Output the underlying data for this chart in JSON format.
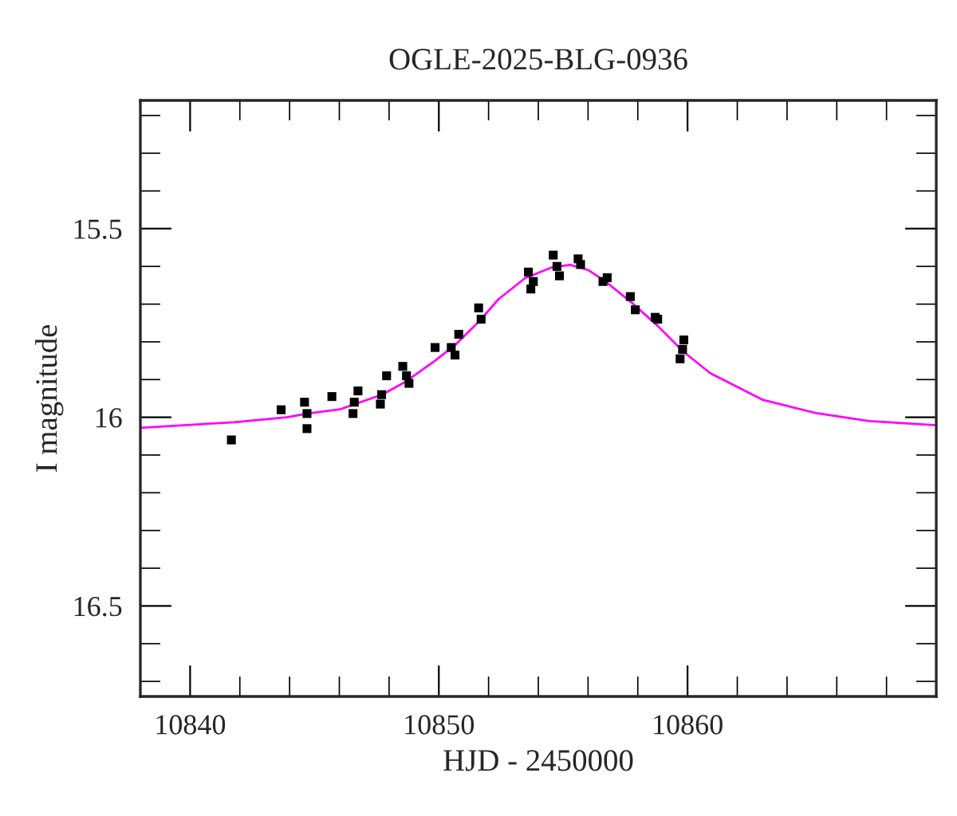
{
  "chart_data": {
    "type": "scatter",
    "title": "OGLE-2025-BLG-0936",
    "xlabel": "HJD - 2450000",
    "ylabel": "I magnitude",
    "xlim": [
      10838,
      10870
    ],
    "ylim": [
      16.74,
      15.16
    ],
    "xticks": [
      {
        "value": 10838,
        "label": null
      },
      10840,
      {
        "value": 10842,
        "label": null
      },
      {
        "value": 10844,
        "label": null
      },
      {
        "value": 10846,
        "label": null
      },
      {
        "value": 10848,
        "label": null
      },
      10850,
      {
        "value": 10852,
        "label": null
      },
      {
        "value": 10854,
        "label": null
      },
      {
        "value": 10856,
        "label": null
      },
      {
        "value": 10858,
        "label": null
      },
      10860,
      {
        "value": 10862,
        "label": null
      },
      {
        "value": 10864,
        "label": null
      },
      {
        "value": 10866,
        "label": null
      },
      {
        "value": 10868,
        "label": null
      }
    ],
    "yticks": [
      {
        "value": 15.2,
        "label": null
      },
      {
        "value": 15.3,
        "label": null
      },
      {
        "value": 15.4,
        "label": null
      },
      15.5,
      {
        "value": 15.6,
        "label": null
      },
      {
        "value": 15.7,
        "label": null
      },
      {
        "value": 15.8,
        "label": null
      },
      {
        "value": 15.9,
        "label": null
      },
      16,
      {
        "value": 16.1,
        "label": null
      },
      {
        "value": 16.2,
        "label": null
      },
      {
        "value": 16.3,
        "label": null
      },
      {
        "value": 16.4,
        "label": null
      },
      16.5,
      {
        "value": 16.6,
        "label": null
      },
      {
        "value": 16.7,
        "label": null
      }
    ],
    "grid": false,
    "marker": "square",
    "series": [
      {
        "color": "#000000",
        "x": [
          10841.66,
          10843.66,
          10844.6,
          10844.7,
          10844.7,
          10845.7,
          10846.55,
          10846.6,
          10846.75,
          10847.65,
          10847.7,
          10847.9,
          10848.55,
          10848.7,
          10848.8,
          10849.85,
          10850.5,
          10850.65,
          10850.8,
          10851.6,
          10851.7,
          10853.6,
          10853.7,
          10853.8,
          10854.6,
          10854.75,
          10854.85,
          10855.6,
          10855.7,
          10856.6,
          10856.77,
          10857.7,
          10857.9,
          10858.7,
          10858.8,
          10859.7,
          10859.8,
          10859.85
        ],
        "values": [
          16.06,
          15.98,
          15.96,
          16.03,
          15.99,
          15.945,
          15.99,
          15.96,
          15.93,
          15.965,
          15.94,
          15.89,
          15.865,
          15.89,
          15.91,
          15.815,
          15.815,
          15.835,
          15.78,
          15.71,
          15.74,
          15.615,
          15.66,
          15.64,
          15.57,
          15.6,
          15.625,
          15.58,
          15.595,
          15.64,
          15.63,
          15.68,
          15.715,
          15.735,
          15.74,
          15.845,
          15.82,
          15.795
        ]
      },
      {
        "type": "line",
        "color": "#ff00ff",
        "marker": "none",
        "x": [
          10838,
          10841.77,
          10843.89,
          10844.74,
          10846.02,
          10847.72,
          10848.68,
          10849.85,
          10850.7,
          10851.66,
          10852.4,
          10853.47,
          10854.53,
          10855.28,
          10856.02,
          10856.66,
          10857.72,
          10858.79,
          10859.85,
          10860.91,
          10863.04,
          10865.17,
          10867.3,
          10870
        ],
        "values": [
          16.028,
          16.013,
          16.0,
          15.99,
          15.979,
          15.94,
          15.905,
          15.85,
          15.806,
          15.743,
          15.687,
          15.631,
          15.603,
          15.596,
          15.61,
          15.638,
          15.694,
          15.757,
          15.827,
          15.883,
          15.954,
          15.989,
          16.01,
          16.021
        ]
      }
    ]
  }
}
